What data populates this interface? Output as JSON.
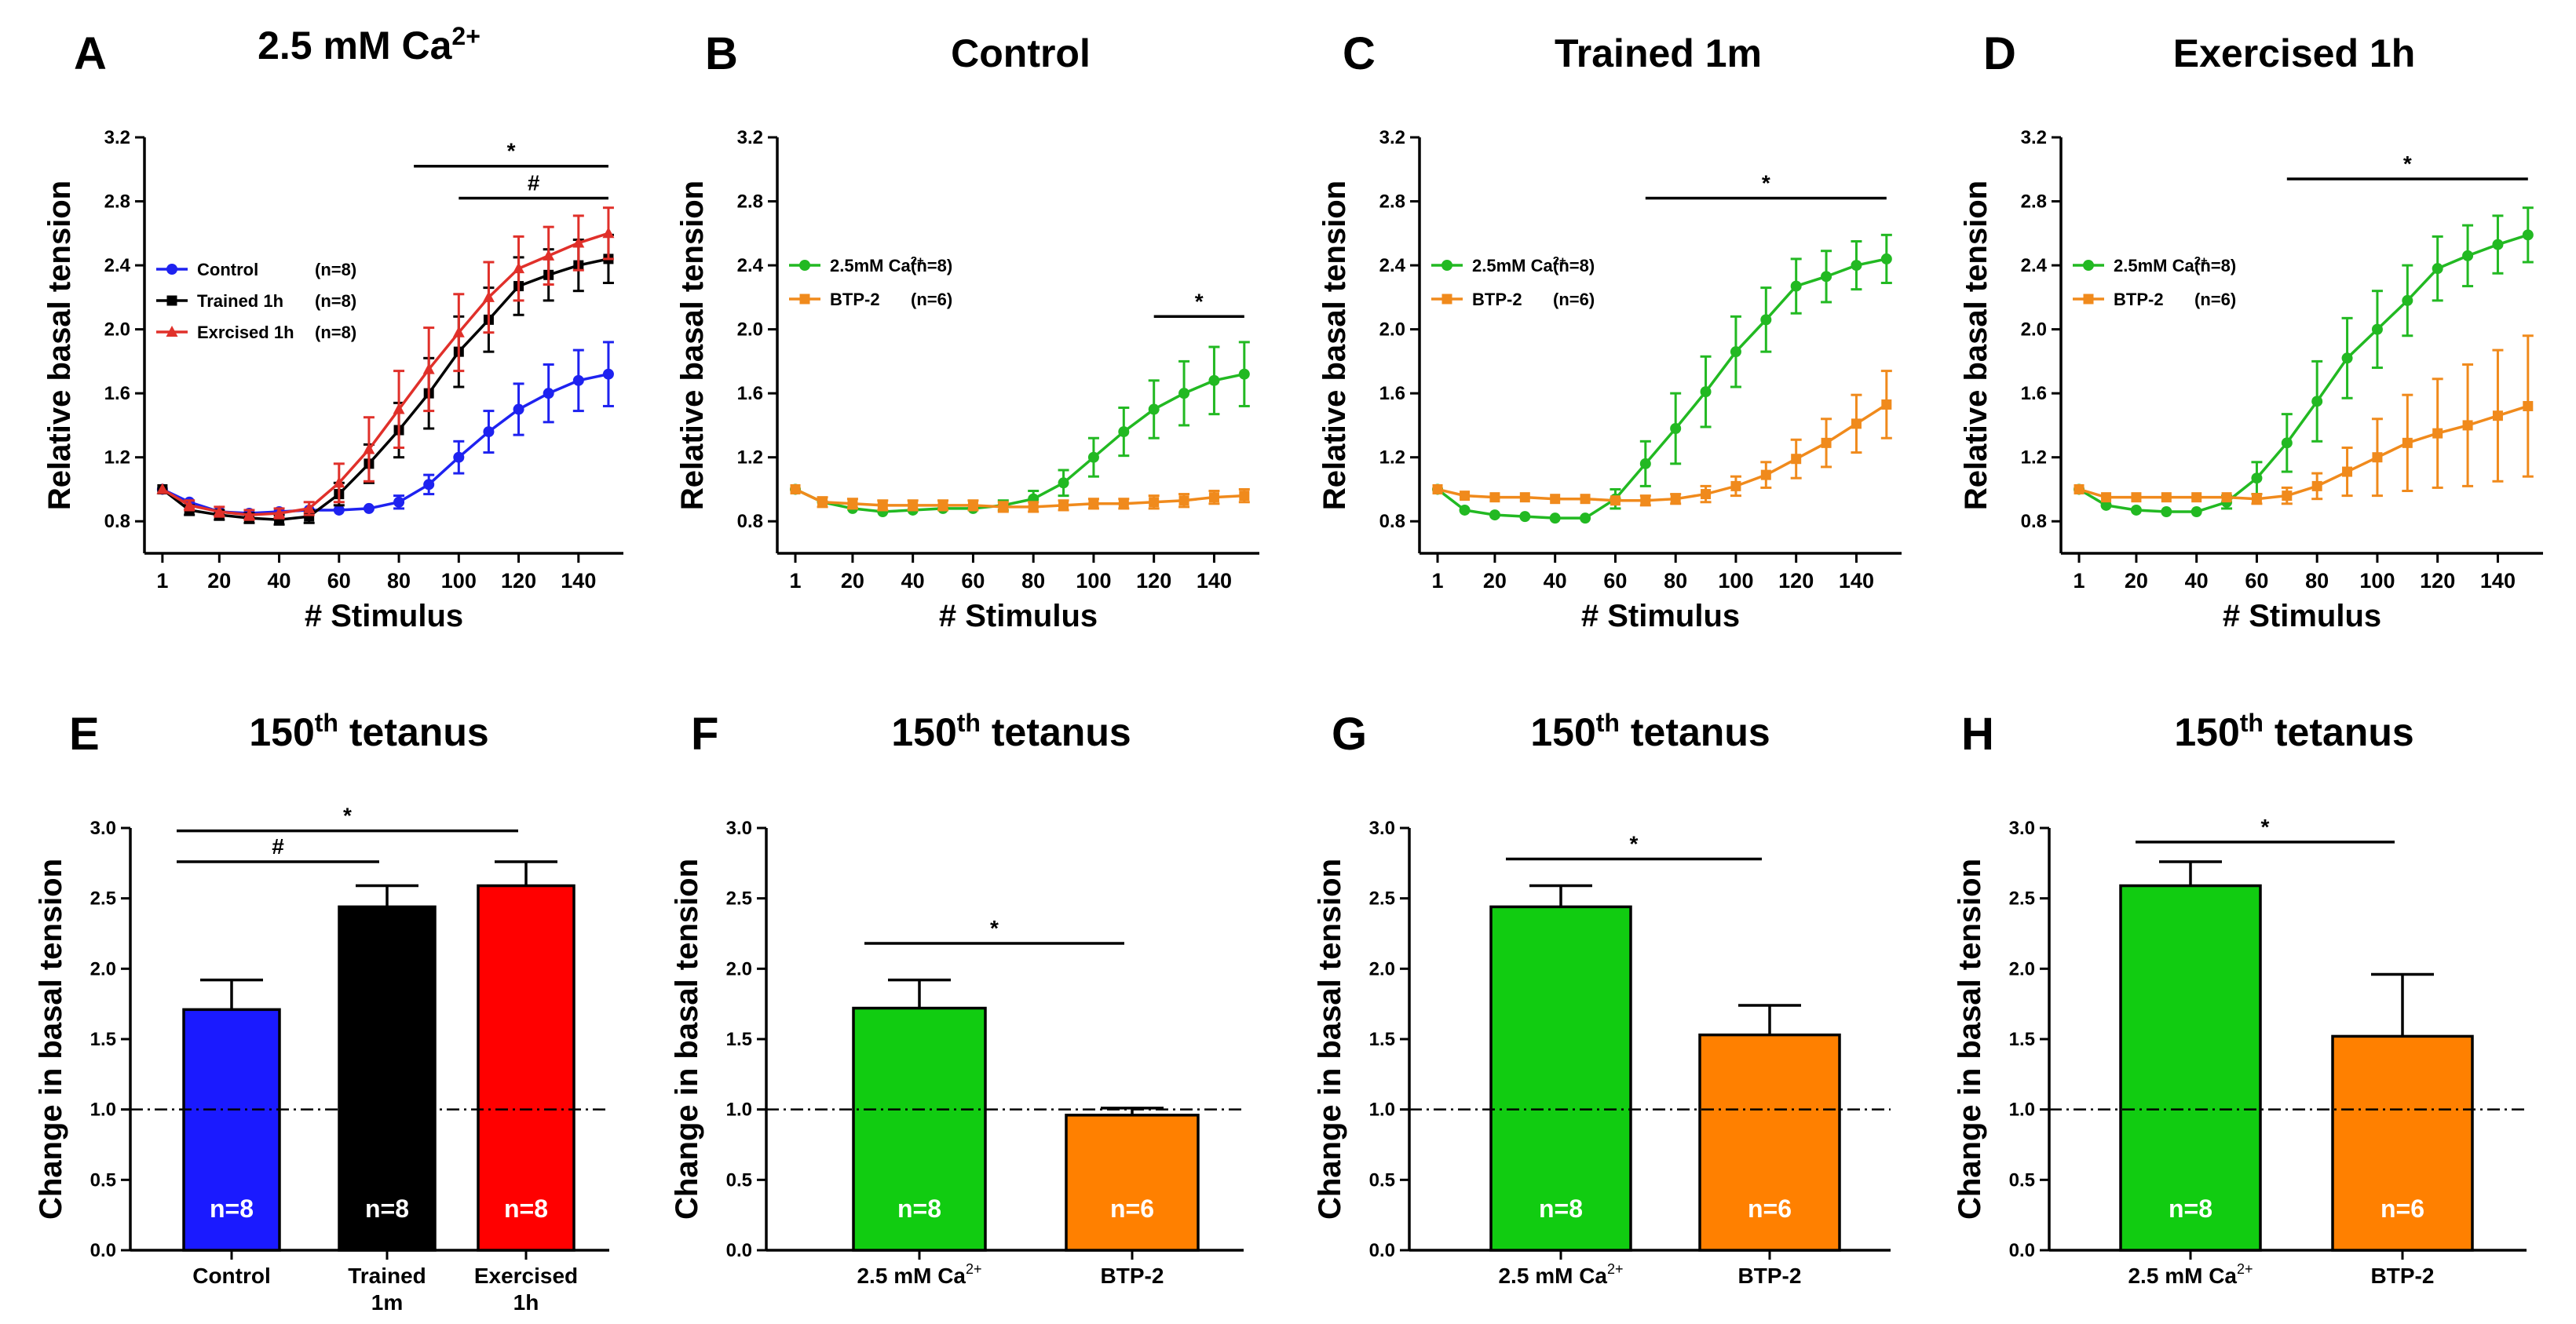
{
  "colors": {
    "control": "#1e22f0",
    "trained": "#000000",
    "exercised": "#e0302a",
    "ca": "#22b922",
    "btp": "#f08a1c",
    "bar_control": "#1a1aff",
    "bar_trained": "#000000",
    "bar_exercised": "#ff0000",
    "bar_ca": "#11cc11",
    "bar_btp": "#ff8000"
  },
  "chart_data": [
    {
      "panel": "A",
      "type": "line",
      "title": "2.5 mM Ca",
      "title_sup": "2+",
      "xlabel": "# Stimulus",
      "ylabel": "Relative basal tension",
      "xlim": [
        -5,
        155
      ],
      "ylim": [
        0.6,
        3.2
      ],
      "xticks": [
        1,
        20,
        40,
        60,
        80,
        100,
        120,
        140
      ],
      "yticks": [
        0.8,
        1.2,
        1.6,
        2.0,
        2.4,
        2.8,
        3.2
      ],
      "x": [
        1,
        10,
        20,
        30,
        40,
        50,
        60,
        70,
        80,
        90,
        100,
        110,
        120,
        130,
        140,
        150
      ],
      "series": [
        {
          "name": "Control",
          "n": "(n=8)",
          "color_key": "control",
          "marker": "circle",
          "values": [
            1.0,
            0.92,
            0.86,
            0.85,
            0.86,
            0.87,
            0.87,
            0.88,
            0.92,
            1.03,
            1.2,
            1.36,
            1.5,
            1.6,
            1.68,
            1.72
          ],
          "err": [
            0.02,
            0.02,
            0.02,
            0.02,
            0.02,
            0.02,
            0.02,
            0.02,
            0.04,
            0.06,
            0.1,
            0.13,
            0.16,
            0.18,
            0.19,
            0.2
          ]
        },
        {
          "name": "Trained 1h",
          "n": "(n=8)",
          "color_key": "trained",
          "marker": "square",
          "values": [
            1.0,
            0.87,
            0.84,
            0.82,
            0.81,
            0.83,
            0.97,
            1.16,
            1.37,
            1.6,
            1.86,
            2.06,
            2.27,
            2.34,
            2.4,
            2.44
          ],
          "err": [
            0.02,
            0.03,
            0.03,
            0.03,
            0.03,
            0.04,
            0.07,
            0.12,
            0.17,
            0.22,
            0.22,
            0.2,
            0.18,
            0.16,
            0.16,
            0.15
          ]
        },
        {
          "name": "Exrcised 1h",
          "n": "(n=8)",
          "color_key": "exercised",
          "marker": "triangle",
          "values": [
            1.0,
            0.9,
            0.86,
            0.84,
            0.85,
            0.88,
            1.04,
            1.25,
            1.5,
            1.75,
            1.98,
            2.2,
            2.38,
            2.46,
            2.54,
            2.6
          ],
          "err": [
            0.02,
            0.03,
            0.03,
            0.03,
            0.03,
            0.04,
            0.12,
            0.2,
            0.24,
            0.26,
            0.24,
            0.22,
            0.2,
            0.18,
            0.17,
            0.16
          ]
        }
      ],
      "legend_position": "left",
      "sig": [
        {
          "x1": 85,
          "x2": 150,
          "y": 3.02,
          "label": "*"
        },
        {
          "x1": 100,
          "x2": 150,
          "y": 2.82,
          "label": "#"
        }
      ]
    },
    {
      "panel": "B",
      "type": "line",
      "title": "Control",
      "title_sup": "",
      "xlabel": "# Stimulus",
      "ylabel": "Relative basal tension",
      "xlim": [
        -5,
        155
      ],
      "ylim": [
        0.6,
        3.2
      ],
      "xticks": [
        1,
        20,
        40,
        60,
        80,
        100,
        120,
        140
      ],
      "yticks": [
        0.8,
        1.2,
        1.6,
        2.0,
        2.4,
        2.8,
        3.2
      ],
      "x": [
        1,
        10,
        20,
        30,
        40,
        50,
        60,
        70,
        80,
        90,
        100,
        110,
        120,
        130,
        140,
        150
      ],
      "series": [
        {
          "name": "2.5mM Ca",
          "sup": "2+",
          "n": "(n=8)",
          "color_key": "ca",
          "marker": "circle",
          "values": [
            1.0,
            0.92,
            0.88,
            0.86,
            0.87,
            0.88,
            0.88,
            0.9,
            0.94,
            1.04,
            1.2,
            1.36,
            1.5,
            1.6,
            1.68,
            1.72
          ],
          "err": [
            0.02,
            0.02,
            0.02,
            0.02,
            0.02,
            0.02,
            0.02,
            0.03,
            0.05,
            0.08,
            0.12,
            0.15,
            0.18,
            0.2,
            0.21,
            0.2
          ]
        },
        {
          "name": "BTP-2",
          "sup": "",
          "n": "(n=6)",
          "color_key": "btp",
          "marker": "square",
          "values": [
            1.0,
            0.92,
            0.91,
            0.9,
            0.9,
            0.9,
            0.9,
            0.89,
            0.89,
            0.9,
            0.91,
            0.91,
            0.92,
            0.93,
            0.95,
            0.96
          ],
          "err": [
            0.02,
            0.03,
            0.03,
            0.03,
            0.03,
            0.03,
            0.03,
            0.03,
            0.03,
            0.03,
            0.03,
            0.03,
            0.04,
            0.04,
            0.04,
            0.04
          ]
        }
      ],
      "legend_position": "left",
      "sig": [
        {
          "x1": 120,
          "x2": 150,
          "y": 2.08,
          "label": "*"
        }
      ]
    },
    {
      "panel": "C",
      "type": "line",
      "title": "Trained 1m",
      "title_sup": "",
      "xlabel": "# Stimulus",
      "ylabel": "Relative basal tension",
      "xlim": [
        -5,
        155
      ],
      "ylim": [
        0.6,
        3.2
      ],
      "xticks": [
        1,
        20,
        40,
        60,
        80,
        100,
        120,
        140
      ],
      "yticks": [
        0.8,
        1.2,
        1.6,
        2.0,
        2.4,
        2.8,
        3.2
      ],
      "x": [
        1,
        10,
        20,
        30,
        40,
        50,
        60,
        70,
        80,
        90,
        100,
        110,
        120,
        130,
        140,
        150
      ],
      "series": [
        {
          "name": "2.5mM Ca",
          "sup": "2+",
          "n": "(n=8)",
          "color_key": "ca",
          "marker": "circle",
          "values": [
            1.0,
            0.87,
            0.84,
            0.83,
            0.82,
            0.82,
            0.94,
            1.16,
            1.38,
            1.61,
            1.86,
            2.06,
            2.27,
            2.33,
            2.4,
            2.44
          ],
          "err": [
            0.02,
            0.02,
            0.02,
            0.02,
            0.02,
            0.02,
            0.06,
            0.14,
            0.22,
            0.22,
            0.22,
            0.2,
            0.17,
            0.16,
            0.15,
            0.15
          ]
        },
        {
          "name": "BTP-2",
          "sup": "",
          "n": "(n=6)",
          "color_key": "btp",
          "marker": "square",
          "values": [
            1.0,
            0.96,
            0.95,
            0.95,
            0.94,
            0.94,
            0.93,
            0.93,
            0.94,
            0.97,
            1.02,
            1.09,
            1.19,
            1.29,
            1.41,
            1.53
          ],
          "err": [
            0.02,
            0.02,
            0.02,
            0.02,
            0.02,
            0.02,
            0.02,
            0.03,
            0.03,
            0.05,
            0.06,
            0.08,
            0.12,
            0.15,
            0.18,
            0.21
          ]
        }
      ],
      "legend_position": "left",
      "sig": [
        {
          "x1": 70,
          "x2": 150,
          "y": 2.82,
          "label": "*"
        }
      ]
    },
    {
      "panel": "D",
      "type": "line",
      "title": "Exercised 1h",
      "title_sup": "",
      "xlabel": "# Stimulus",
      "ylabel": "Relative basal tension",
      "xlim": [
        -5,
        155
      ],
      "ylim": [
        0.6,
        3.2
      ],
      "xticks": [
        1,
        20,
        40,
        60,
        80,
        100,
        120,
        140
      ],
      "yticks": [
        0.8,
        1.2,
        1.6,
        2.0,
        2.4,
        2.8,
        3.2
      ],
      "x": [
        1,
        10,
        20,
        30,
        40,
        50,
        60,
        70,
        80,
        90,
        100,
        110,
        120,
        130,
        140,
        150
      ],
      "series": [
        {
          "name": "2.5mM Ca",
          "sup": "2+",
          "n": "(n=8)",
          "color_key": "ca",
          "marker": "circle",
          "values": [
            1.0,
            0.9,
            0.87,
            0.86,
            0.86,
            0.92,
            1.07,
            1.29,
            1.55,
            1.82,
            2.0,
            2.18,
            2.38,
            2.46,
            2.53,
            2.59
          ],
          "err": [
            0.02,
            0.02,
            0.02,
            0.02,
            0.02,
            0.04,
            0.1,
            0.18,
            0.25,
            0.25,
            0.24,
            0.22,
            0.2,
            0.19,
            0.18,
            0.17
          ]
        },
        {
          "name": "BTP-2",
          "sup": "",
          "n": "(n=6)",
          "color_key": "btp",
          "marker": "square",
          "values": [
            1.0,
            0.95,
            0.95,
            0.95,
            0.95,
            0.95,
            0.94,
            0.96,
            1.02,
            1.11,
            1.2,
            1.29,
            1.35,
            1.4,
            1.46,
            1.52
          ],
          "err": [
            0.02,
            0.02,
            0.02,
            0.02,
            0.02,
            0.02,
            0.03,
            0.05,
            0.08,
            0.15,
            0.24,
            0.3,
            0.34,
            0.38,
            0.41,
            0.44
          ]
        }
      ],
      "legend_position": "left",
      "sig": [
        {
          "x1": 70,
          "x2": 150,
          "y": 2.94,
          "label": "*"
        }
      ]
    },
    {
      "panel": "E",
      "type": "bar",
      "title": "150",
      "title_sup": "th",
      "title_rest": " tetanus",
      "ylabel": "Change in basal tension",
      "ylim": [
        0,
        3.0
      ],
      "yticks": [
        0.0,
        0.5,
        1.0,
        1.5,
        2.0,
        2.5,
        3.0
      ],
      "reference_line": 1.0,
      "bars": [
        {
          "label": "Control",
          "label2": "",
          "sup": "",
          "value": 1.71,
          "err": 0.21,
          "color_key": "bar_control",
          "n": "n=8"
        },
        {
          "label": "Trained",
          "label2": "1m",
          "sup": "",
          "value": 2.44,
          "err": 0.15,
          "color_key": "bar_trained",
          "n": "n=8"
        },
        {
          "label": "Exercised",
          "label2": "1h",
          "sup": "",
          "value": 2.59,
          "err": 0.17,
          "color_key": "bar_exercised",
          "n": "n=8"
        }
      ],
      "sig": [
        {
          "from": 0,
          "to": 2,
          "y": 2.98,
          "label": "*"
        },
        {
          "from": 0,
          "to": 1,
          "y": 2.76,
          "label": "#"
        }
      ]
    },
    {
      "panel": "F",
      "type": "bar",
      "title": "150",
      "title_sup": "th",
      "title_rest": " tetanus",
      "ylabel": "Change in basal tension",
      "ylim": [
        0,
        3.0
      ],
      "yticks": [
        0.0,
        0.5,
        1.0,
        1.5,
        2.0,
        2.5,
        3.0
      ],
      "reference_line": 1.0,
      "bars": [
        {
          "label": "2.5 mM Ca",
          "label2": "",
          "sup": "2+",
          "value": 1.72,
          "err": 0.2,
          "color_key": "bar_ca",
          "n": "n=8"
        },
        {
          "label": "BTP-2",
          "label2": "",
          "sup": "",
          "value": 0.96,
          "err": 0.05,
          "color_key": "bar_btp",
          "n": "n=6"
        }
      ],
      "sig": [
        {
          "from": 0,
          "to": 1,
          "y": 2.18,
          "label": "*"
        }
      ]
    },
    {
      "panel": "G",
      "type": "bar",
      "title": "150",
      "title_sup": "th",
      "title_rest": " tetanus",
      "ylabel": "Change in basal tension",
      "ylim": [
        0,
        3.0
      ],
      "yticks": [
        0.0,
        0.5,
        1.0,
        1.5,
        2.0,
        2.5,
        3.0
      ],
      "reference_line": 1.0,
      "bars": [
        {
          "label": "2.5 mM Ca",
          "label2": "",
          "sup": "2+",
          "value": 2.44,
          "err": 0.15,
          "color_key": "bar_ca",
          "n": "n=8"
        },
        {
          "label": "BTP-2",
          "label2": "",
          "sup": "",
          "value": 1.53,
          "err": 0.21,
          "color_key": "bar_btp",
          "n": "n=6"
        }
      ],
      "sig": [
        {
          "from": 0,
          "to": 1,
          "y": 2.78,
          "label": "*"
        }
      ]
    },
    {
      "panel": "H",
      "type": "bar",
      "title": "150",
      "title_sup": "th",
      "title_rest": " tetanus",
      "ylabel": "Change in basal tension",
      "ylim": [
        0,
        3.0
      ],
      "yticks": [
        0.0,
        0.5,
        1.0,
        1.5,
        2.0,
        2.5,
        3.0
      ],
      "reference_line": 1.0,
      "bars": [
        {
          "label": "2.5 mM Ca",
          "label2": "",
          "sup": "2+",
          "value": 2.59,
          "err": 0.17,
          "color_key": "bar_ca",
          "n": "n=8"
        },
        {
          "label": "BTP-2",
          "label2": "",
          "sup": "",
          "value": 1.52,
          "err": 0.44,
          "color_key": "bar_btp",
          "n": "n=6"
        }
      ],
      "sig": [
        {
          "from": 0,
          "to": 1,
          "y": 2.9,
          "label": "*"
        }
      ]
    }
  ]
}
